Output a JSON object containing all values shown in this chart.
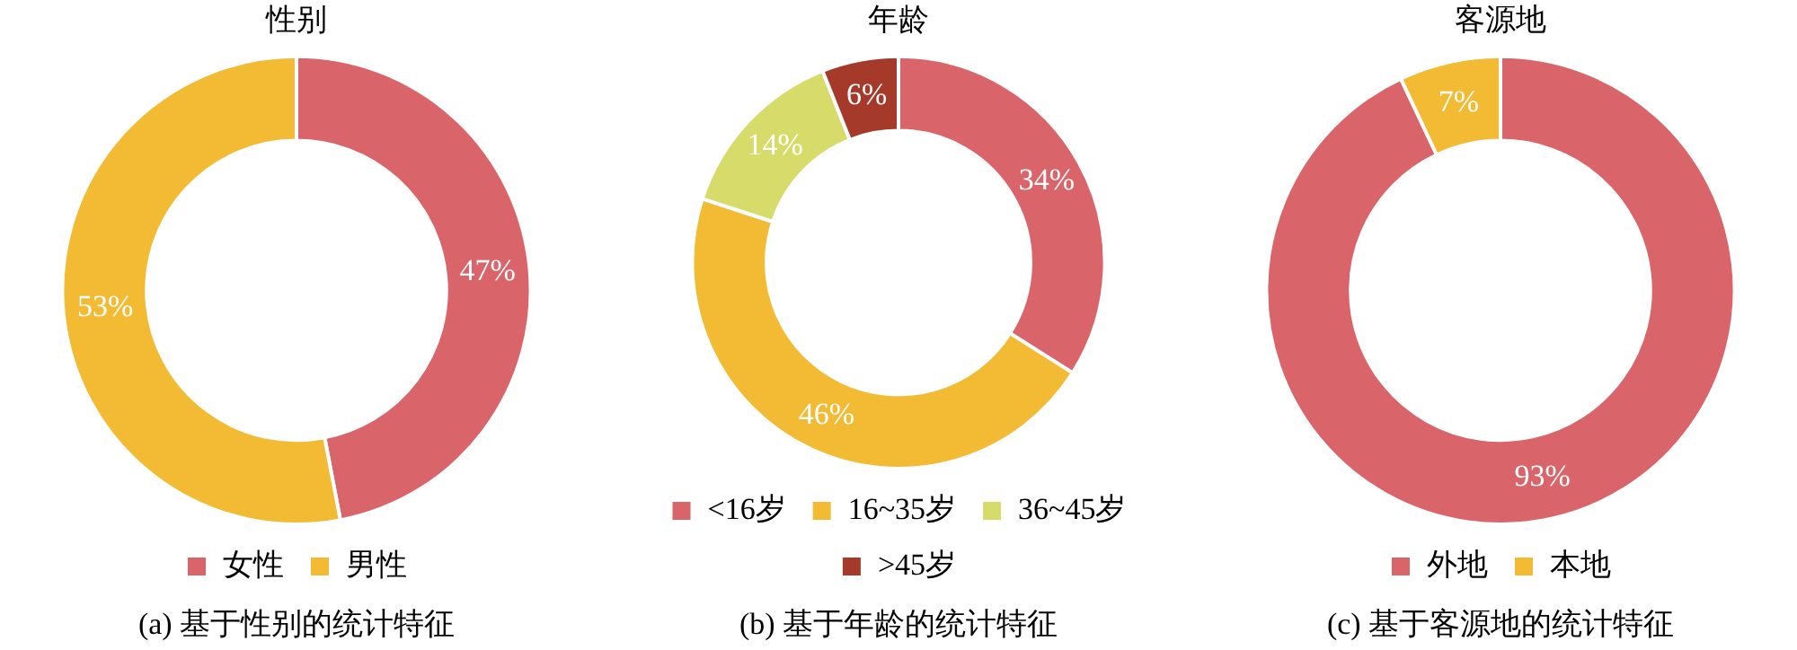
{
  "chart_data": [
    {
      "type": "donut",
      "title": "性别",
      "categories": [
        "女性",
        "男性"
      ],
      "values": [
        47,
        53
      ],
      "colors": [
        "#d9646a",
        "#f2bb33"
      ],
      "value_labels": [
        "47%",
        "53%"
      ],
      "legend": "bottom",
      "annotations": [
        "(a) 基于性别的统计特征"
      ]
    },
    {
      "type": "donut",
      "title": "年龄",
      "categories": [
        "<16岁",
        "16~35岁",
        "36~45岁",
        ">45岁"
      ],
      "values": [
        34,
        46,
        14,
        6
      ],
      "colors": [
        "#d9646a",
        "#f2bb33",
        "#d7db6a",
        "#a63a2a"
      ],
      "value_labels": [
        "34%",
        "46%",
        "14%",
        "6%"
      ],
      "legend": "bottom",
      "annotations": [
        "(b) 基于年龄的统计特征"
      ]
    },
    {
      "type": "donut",
      "title": "客源地",
      "categories": [
        "外地",
        "本地"
      ],
      "values": [
        93,
        7
      ],
      "colors": [
        "#d9646a",
        "#f2bb33"
      ],
      "value_labels": [
        "93%",
        "7%"
      ],
      "legend": "bottom",
      "annotations": [
        "(c) 基于客源地的统计特征"
      ]
    }
  ]
}
